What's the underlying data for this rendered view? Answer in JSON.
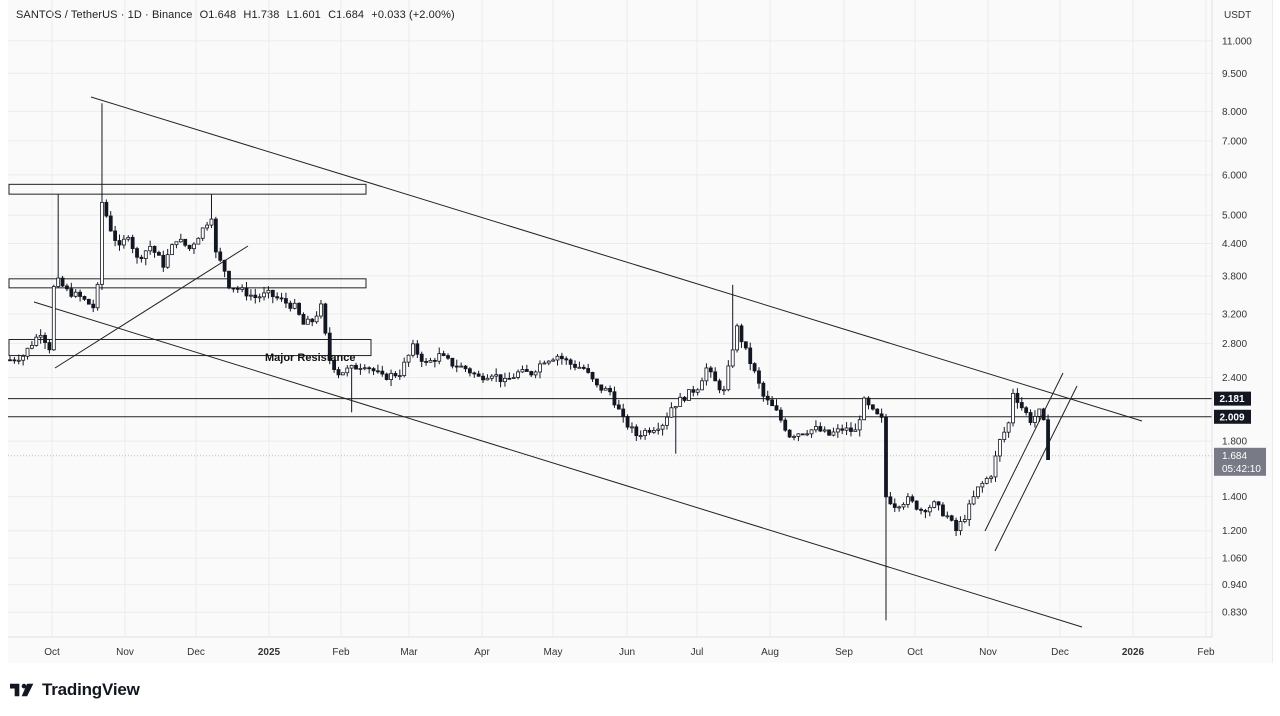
{
  "header": {
    "symbol": "SANTOS / TetherUS · 1D · Binance",
    "open": "O1.648",
    "high": "H1.738",
    "low": "L1.601",
    "close": "C1.684",
    "change": "+0.033 (+2.00%)"
  },
  "currency": "USDT",
  "brand": "TradingView",
  "colors": {
    "candle": "#131722",
    "grid": "#ececec",
    "price_tag": "#131722",
    "current_tag": "#787b86"
  },
  "chart_data": {
    "type": "candlestick",
    "scale": "log",
    "y_ticks": [
      "11.000",
      "9.500",
      "8.000",
      "7.000",
      "6.000",
      "5.000",
      "4.400",
      "3.800",
      "3.200",
      "2.800",
      "2.400",
      "1.800",
      "1.400",
      "1.200",
      "1.060",
      "0.940",
      "0.830"
    ],
    "x_ticks": [
      "Oct",
      "Nov",
      "Dec",
      "2025",
      "Feb",
      "Mar",
      "Apr",
      "May",
      "Jun",
      "Jul",
      "Aug",
      "Sep",
      "Oct",
      "Nov",
      "Dec",
      "2026",
      "Feb"
    ],
    "x_ticks_bold": [
      "2025",
      "2026"
    ],
    "levels": [
      {
        "label": "2.181",
        "value": 2.181
      },
      {
        "label": "2.009",
        "value": 2.009
      }
    ],
    "current": {
      "price": "1.684",
      "countdown": "05:42:10"
    },
    "annotations": [
      {
        "text": "Major Resistance"
      }
    ],
    "resistance_zones": [
      [
        5.5,
        5.75
      ],
      [
        3.6,
        3.75
      ],
      [
        2.65,
        2.85
      ]
    ],
    "price_path": [
      [
        0,
        2.6
      ],
      [
        3,
        2.65
      ],
      [
        5,
        2.8
      ],
      [
        7,
        2.95
      ],
      [
        9,
        2.75
      ],
      [
        10,
        3.6
      ],
      [
        11,
        3.7
      ],
      [
        13,
        3.55
      ],
      [
        16,
        3.45
      ],
      [
        19,
        3.3
      ],
      [
        20,
        3.6
      ],
      [
        21,
        5.3
      ],
      [
        23,
        4.7
      ],
      [
        25,
        4.3
      ],
      [
        27,
        4.6
      ],
      [
        29,
        4.1
      ],
      [
        32,
        4.35
      ],
      [
        35,
        4.0
      ],
      [
        38,
        4.5
      ],
      [
        41,
        4.3
      ],
      [
        44,
        4.7
      ],
      [
        46,
        5.0
      ],
      [
        47,
        4.2
      ],
      [
        49,
        3.9
      ],
      [
        50,
        3.65
      ],
      [
        53,
        3.55
      ],
      [
        56,
        3.45
      ],
      [
        59,
        3.5
      ],
      [
        62,
        3.4
      ],
      [
        65,
        3.3
      ],
      [
        67,
        3.05
      ],
      [
        69,
        3.1
      ],
      [
        71,
        3.3
      ],
      [
        72,
        2.9
      ],
      [
        73,
        2.6
      ],
      [
        75,
        2.45
      ],
      [
        78,
        2.5
      ],
      [
        81,
        2.55
      ],
      [
        85,
        2.4
      ],
      [
        89,
        2.45
      ],
      [
        92,
        2.75
      ],
      [
        95,
        2.55
      ],
      [
        98,
        2.65
      ],
      [
        101,
        2.55
      ],
      [
        104,
        2.5
      ],
      [
        107,
        2.4
      ],
      [
        110,
        2.45
      ],
      [
        113,
        2.35
      ],
      [
        116,
        2.45
      ],
      [
        119,
        2.45
      ],
      [
        122,
        2.6
      ],
      [
        125,
        2.65
      ],
      [
        128,
        2.55
      ],
      [
        131,
        2.5
      ],
      [
        134,
        2.3
      ],
      [
        137,
        2.25
      ],
      [
        140,
        1.98
      ],
      [
        143,
        1.85
      ],
      [
        146,
        1.9
      ],
      [
        149,
        1.95
      ],
      [
        151,
        2.1
      ],
      [
        154,
        2.2
      ],
      [
        157,
        2.3
      ],
      [
        159,
        2.5
      ],
      [
        161,
        2.35
      ],
      [
        163,
        2.25
      ],
      [
        165,
        2.75
      ],
      [
        166,
        3.0
      ],
      [
        168,
        2.7
      ],
      [
        170,
        2.45
      ],
      [
        172,
        2.2
      ],
      [
        175,
        2.05
      ],
      [
        178,
        1.85
      ],
      [
        181,
        1.88
      ],
      [
        184,
        1.9
      ],
      [
        187,
        1.85
      ],
      [
        190,
        1.9
      ],
      [
        193,
        1.88
      ],
      [
        195,
        2.15
      ],
      [
        197,
        2.05
      ],
      [
        199,
        1.98
      ],
      [
        200,
        1.4
      ],
      [
        202,
        1.35
      ],
      [
        205,
        1.38
      ],
      [
        208,
        1.32
      ],
      [
        211,
        1.35
      ],
      [
        214,
        1.28
      ],
      [
        216,
        1.2
      ],
      [
        218,
        1.28
      ],
      [
        221,
        1.45
      ],
      [
        224,
        1.55
      ],
      [
        226,
        1.8
      ],
      [
        228,
        1.95
      ],
      [
        229,
        2.25
      ],
      [
        231,
        2.1
      ],
      [
        233,
        1.98
      ],
      [
        235,
        2.05
      ],
      [
        236,
        1.95
      ],
      [
        237,
        1.684
      ]
    ],
    "price_range": [
      0.8,
      12.5
    ]
  }
}
